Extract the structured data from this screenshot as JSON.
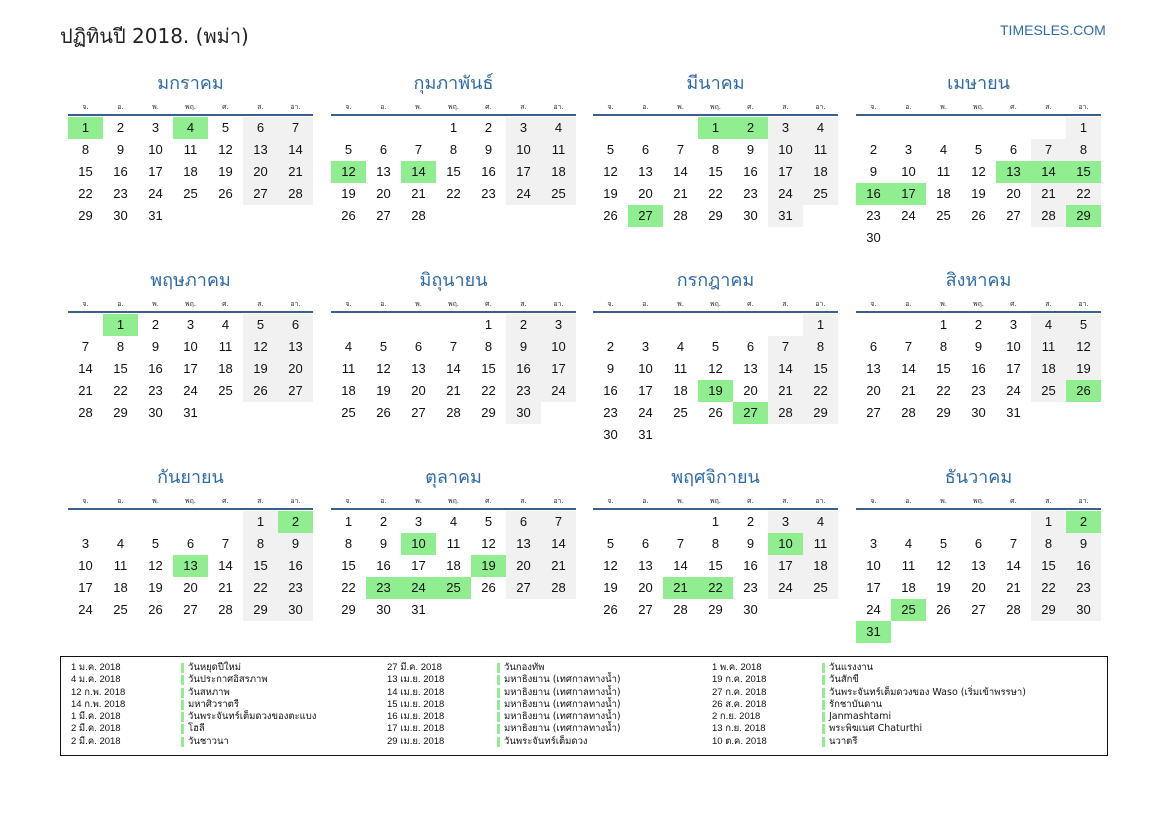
{
  "header": {
    "title": "ปฏิทินปี 2018. (พม่า)",
    "site": "TIMESLES.COM"
  },
  "weekdays": [
    "จ.",
    "อ.",
    "พ.",
    "พฤ.",
    "ศ.",
    "ส.",
    "อา."
  ],
  "months": [
    {
      "name": "มกราคม",
      "offset": 0,
      "days": 31,
      "holidays": [
        1,
        4
      ]
    },
    {
      "name": "กุมภาพันธ์",
      "offset": 3,
      "days": 28,
      "holidays": [
        12,
        14
      ]
    },
    {
      "name": "มีนาคม",
      "offset": 3,
      "days": 31,
      "holidays": [
        1,
        2,
        27
      ]
    },
    {
      "name": "เมษายน",
      "offset": 6,
      "days": 30,
      "holidays": [
        13,
        14,
        15,
        16,
        17,
        29
      ]
    },
    {
      "name": "พฤษภาคม",
      "offset": 1,
      "days": 31,
      "holidays": [
        1
      ]
    },
    {
      "name": "มิถุนายน",
      "offset": 4,
      "days": 30,
      "holidays": []
    },
    {
      "name": "กรกฎาคม",
      "offset": 6,
      "days": 31,
      "holidays": [
        19,
        27
      ]
    },
    {
      "name": "สิงหาคม",
      "offset": 2,
      "days": 31,
      "holidays": [
        26
      ]
    },
    {
      "name": "กันยายน",
      "offset": 5,
      "days": 30,
      "holidays": [
        2,
        13
      ]
    },
    {
      "name": "ตุลาคม",
      "offset": 0,
      "days": 31,
      "holidays": [
        10,
        19,
        23,
        24,
        25
      ]
    },
    {
      "name": "พฤศจิกายน",
      "offset": 3,
      "days": 30,
      "holidays": [
        10,
        21,
        22
      ]
    },
    {
      "name": "ธันวาคม",
      "offset": 5,
      "days": 31,
      "holidays": [
        2,
        25,
        31
      ]
    }
  ],
  "holiday_list": [
    [
      {
        "date": "1 ม.ค. 2018",
        "name": "วันหยุดปีใหม่"
      },
      {
        "date": "4 ม.ค. 2018",
        "name": "วันประกาศอิสรภาพ"
      },
      {
        "date": "12 ก.พ. 2018",
        "name": "วันสหภาพ"
      },
      {
        "date": "14 ก.พ. 2018",
        "name": "มหาศิวราตรี"
      },
      {
        "date": "1 มี.ค. 2018",
        "name": "วันพระจันทร์เต็มดวงของตะแบง"
      },
      {
        "date": "2 มี.ค. 2018",
        "name": "โฮลี"
      },
      {
        "date": "2 มี.ค. 2018",
        "name": "วันชาวนา"
      }
    ],
    [
      {
        "date": "27 มี.ค. 2018",
        "name": "วันกองทัพ"
      },
      {
        "date": "13 เม.ย. 2018",
        "name": "มหาธิงยาน (เทศกาลทางน้ำ)"
      },
      {
        "date": "14 เม.ย. 2018",
        "name": "มหาธิงยาน (เทศกาลทางน้ำ)"
      },
      {
        "date": "15 เม.ย. 2018",
        "name": "มหาธิงยาน (เทศกาลทางน้ำ)"
      },
      {
        "date": "16 เม.ย. 2018",
        "name": "มหาธิงยาน (เทศกาลทางน้ำ)"
      },
      {
        "date": "17 เม.ย. 2018",
        "name": "มหาธิงยาน (เทศกาลทางน้ำ)"
      },
      {
        "date": "29 เม.ย. 2018",
        "name": "วันพระจันทร์เต็มดวง"
      }
    ],
    [
      {
        "date": "1 พ.ค. 2018",
        "name": "วันแรงงาน"
      },
      {
        "date": "19 ก.ค. 2018",
        "name": "วันสักขี"
      },
      {
        "date": "27 ก.ค. 2018",
        "name": "วันพระจันทร์เต็มดวงของ Waso (เริ่มเข้าพรรษา)"
      },
      {
        "date": "26 ส.ค. 2018",
        "name": "รักชาบันดาน"
      },
      {
        "date": "2 ก.ย. 2018",
        "name": "Janmashtami"
      },
      {
        "date": "13 ก.ย. 2018",
        "name": "พระพิฆเนศ Chaturthi"
      },
      {
        "date": "10 ต.ค. 2018",
        "name": "นวาตรี"
      }
    ]
  ],
  "colors": {
    "accent": "#2e6aa8",
    "holiday": "#90ee90",
    "weekend": "#f1f1f1",
    "rule": "#3a5f8f"
  }
}
